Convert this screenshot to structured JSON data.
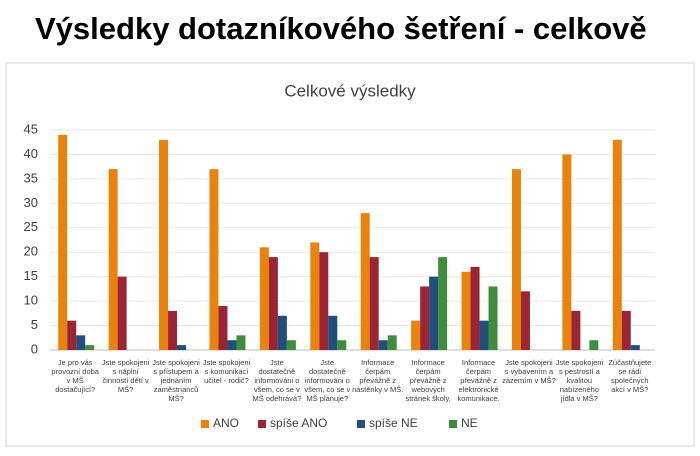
{
  "page_title": "Výsledky dotazníkového šetření - celkově",
  "chart_data": {
    "type": "bar",
    "title": "Celkové výsledky",
    "categories": [
      [
        "Je pro vás",
        "provozní doba",
        "v MŠ",
        "dostačující?"
      ],
      [
        "Jste spokojeni",
        "s náplní",
        "činností dětí v",
        "MŠ?"
      ],
      [
        "Jste spokojeni",
        "s přístupem a",
        "jednáním",
        "zaměstnanců",
        "MŠ?"
      ],
      [
        "Jste spokojeni",
        "s komunikací",
        "učitel - rodič?"
      ],
      [
        "Jste",
        "dostatečně",
        "informováni o",
        "všem, co se v",
        "MŠ odehrává?"
      ],
      [
        "Jste",
        "dostatečně",
        "informováni o",
        "všem, co se v",
        "MŠ plánuje?"
      ],
      [
        "Informace",
        "čerpám",
        "převážně z",
        "nástěnky v MŠ."
      ],
      [
        "Informace",
        "čerpám",
        "převážně z",
        "webových",
        "stránek školy."
      ],
      [
        "Informace",
        "čerpám",
        "převážně z",
        "elektronické",
        "komunikace."
      ],
      [
        "Jste spokojeni",
        "s vybavením a",
        "zázemím v MŠ?"
      ],
      [
        "Jste spokojeni",
        "s pestrostí a",
        "kvalitou",
        "nabízeného",
        "jídla v MŠ?"
      ],
      [
        "Zúčastňujete",
        "se rádi",
        "společných",
        "akcí v MŠ?"
      ]
    ],
    "series": [
      {
        "name": "ANO",
        "color": "#e8830e",
        "values": [
          44,
          37,
          43,
          37,
          21,
          22,
          28,
          6,
          16,
          37,
          40,
          43
        ]
      },
      {
        "name": "spíše ANO",
        "color": "#9c2535",
        "values": [
          6,
          15,
          8,
          9,
          19,
          20,
          19,
          13,
          17,
          12,
          8,
          8
        ]
      },
      {
        "name": "spíše NE",
        "color": "#1f4f7a",
        "values": [
          3,
          0,
          1,
          2,
          7,
          7,
          2,
          15,
          6,
          0,
          0,
          1
        ]
      },
      {
        "name": "NE",
        "color": "#3f8c3c",
        "values": [
          1,
          0,
          0,
          3,
          2,
          2,
          3,
          19,
          13,
          0,
          2,
          0
        ]
      }
    ],
    "ylim": [
      0,
      45
    ],
    "yticks": [
      0,
      5,
      10,
      15,
      20,
      25,
      30,
      35,
      40,
      45
    ],
    "legend": "bottom"
  }
}
